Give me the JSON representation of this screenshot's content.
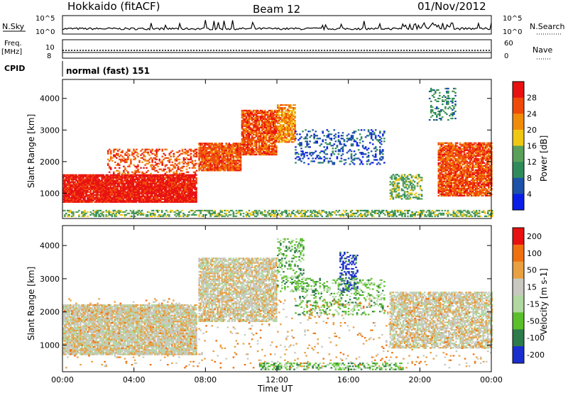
{
  "header": {
    "station": "Hokkaido (fitACF)",
    "beam": "Beam 12",
    "date": "01/Nov/2012"
  },
  "panels": {
    "nsky": {
      "label": "N.Sky",
      "tick_top": "10^5",
      "tick_bottom": "10^0"
    },
    "freq": {
      "label_line1": "Freq.",
      "label_line2": "[MHz]",
      "tick_top": "10",
      "tick_bottom": "8"
    },
    "cpid": {
      "label": "CPID",
      "program": "normal (fast) 151"
    },
    "right": {
      "nsearch": "N.Search",
      "nsearch_top": "10^5",
      "nsearch_bottom": "10^0",
      "nave": "Nave",
      "nave_top": "60",
      "nave_bottom": "0"
    }
  },
  "chart_data": [
    {
      "type": "heatmap",
      "name": "power",
      "ylabel": "Slant Range [km]",
      "colorbar_label": "Power [dB]",
      "x_ticks": [
        "00:00",
        "04:00",
        "08:00",
        "12:00",
        "16:00",
        "20:00",
        "00:00"
      ],
      "y_ticks": [
        1000,
        2000,
        3000,
        4000
      ],
      "ylim": [
        200,
        4600
      ],
      "xlim_hours": [
        0,
        24
      ],
      "colorbar_ticks": [
        "4",
        "8",
        "12",
        "16",
        "20",
        "24",
        "28"
      ],
      "colors": [
        "#0a1ee8",
        "#1e52a8",
        "#2f8c5a",
        "#5aa05a",
        "#f0c814",
        "#f08c0a",
        "#f04a0a",
        "#e81010"
      ]
    },
    {
      "type": "heatmap",
      "name": "velocity",
      "ylabel": "Slant Range [km]",
      "colorbar_label": "Velocity [m s-1]",
      "xlabel": "Time UT",
      "x_ticks": [
        "00:00",
        "04:00",
        "08:00",
        "12:00",
        "16:00",
        "20:00",
        "00:00"
      ],
      "y_ticks": [
        1000,
        2000,
        3000,
        4000
      ],
      "ylim": [
        200,
        4600
      ],
      "xlim_hours": [
        0,
        24
      ],
      "colorbar_ticks": [
        "200",
        "100",
        "50",
        "15",
        "-15",
        "-50",
        "-100",
        "-200"
      ],
      "colors": [
        "#1a2ed0",
        "#2d7a4a",
        "#5abf2a",
        "#b0d8a0",
        "#c8c8c0",
        "#e8a040",
        "#f07010",
        "#e81010"
      ]
    }
  ]
}
